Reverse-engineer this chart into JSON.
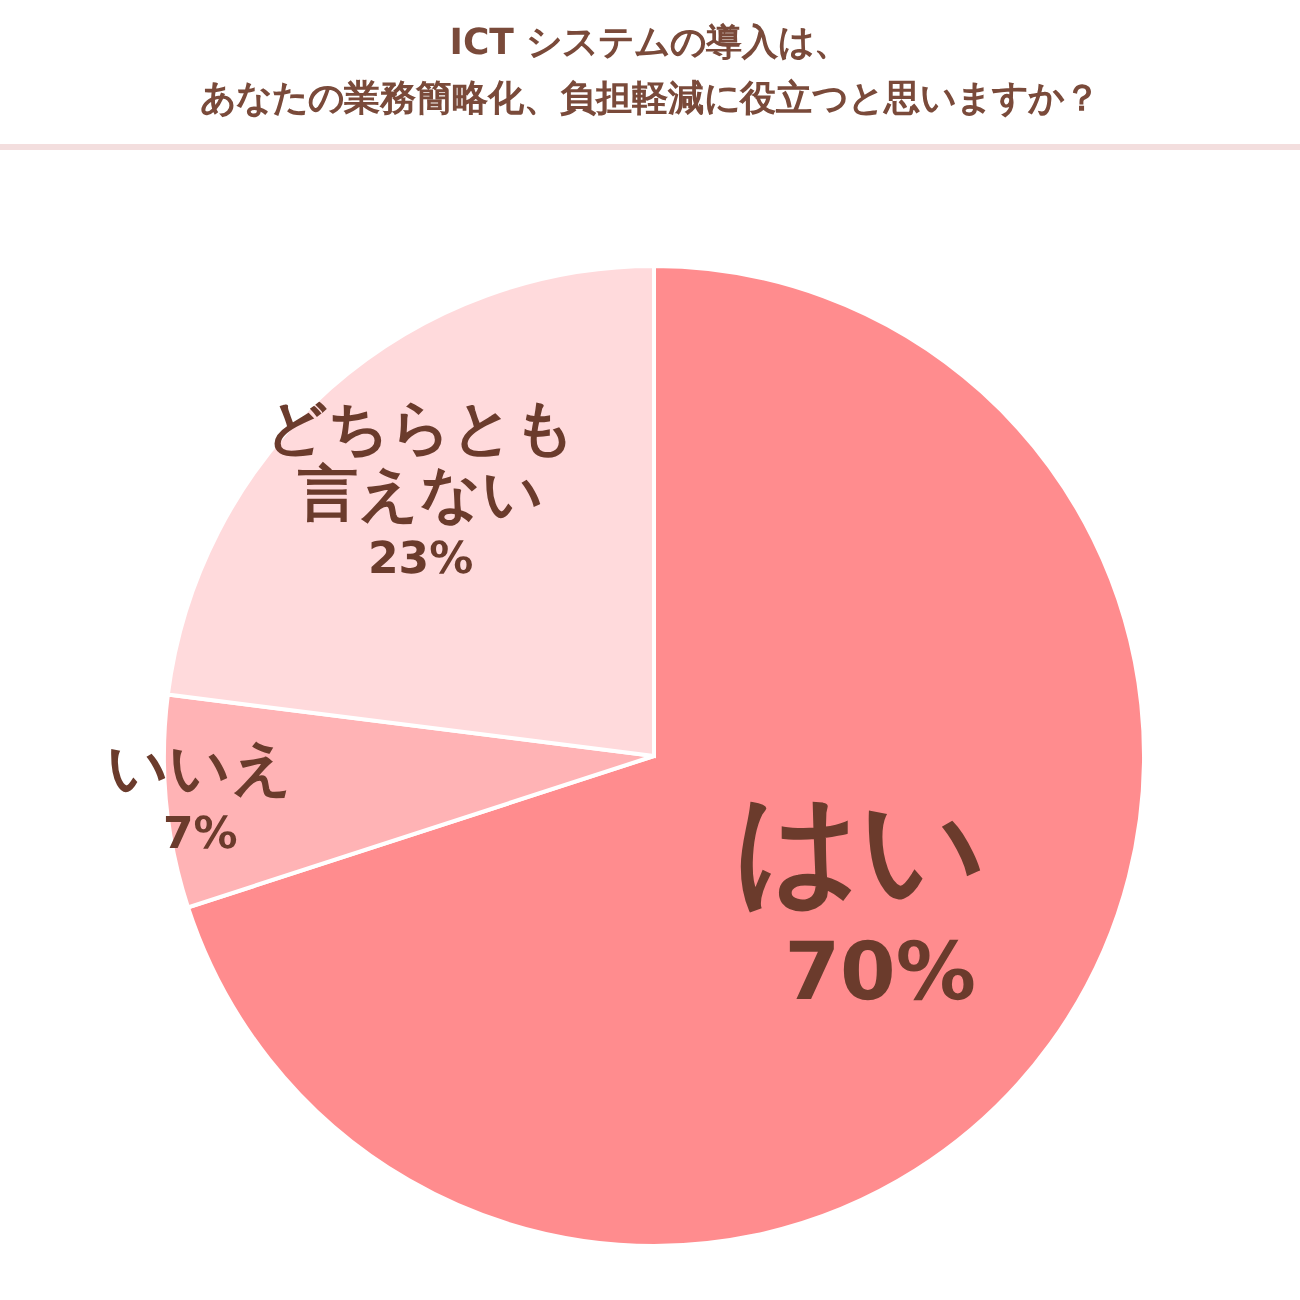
{
  "chart_data": {
    "type": "pie",
    "title": "ICT システムの導入は、",
    "subtitle": "あなたの業務簡略化、負担軽減に役立つと思いますか？",
    "categories": [
      "はい",
      "いいえ",
      "どちらとも言えない"
    ],
    "values": [
      70,
      7,
      23
    ],
    "colors": [
      "#ff8c8e",
      "#ffb3b5",
      "#ffdadc"
    ],
    "value_labels": [
      "70%",
      "7%",
      "23%"
    ],
    "legend": false
  }
}
